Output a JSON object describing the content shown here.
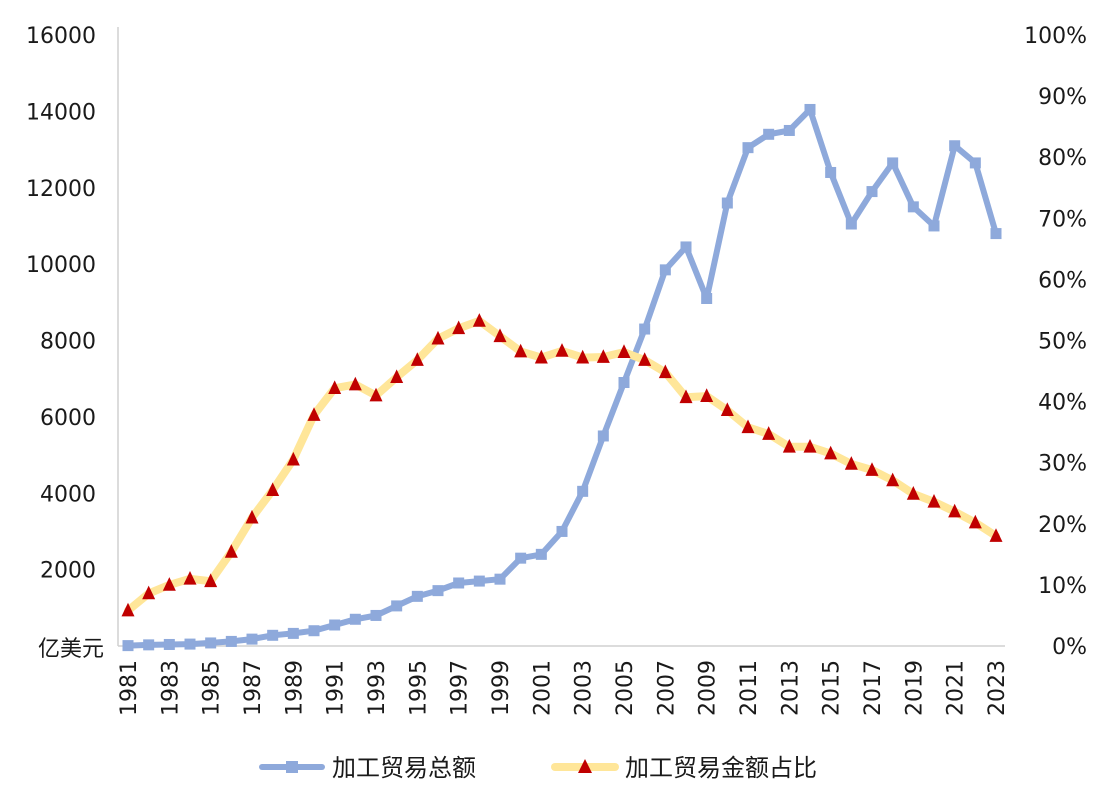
{
  "chart_data": {
    "type": "line",
    "y_unit_label": "亿美元",
    "x": [
      "1981",
      "1982",
      "1983",
      "1984",
      "1985",
      "1986",
      "1987",
      "1988",
      "1989",
      "1990",
      "1991",
      "1992",
      "1993",
      "1994",
      "1995",
      "1996",
      "1997",
      "1998",
      "1999",
      "2000",
      "2001",
      "2002",
      "2003",
      "2004",
      "2005",
      "2006",
      "2007",
      "2008",
      "2009",
      "2010",
      "2011",
      "2012",
      "2013",
      "2014",
      "2015",
      "2016",
      "2017",
      "2018",
      "2019",
      "2020",
      "2021",
      "2022",
      "2023"
    ],
    "x_tick_labels": [
      "1981",
      "1983",
      "1985",
      "1987",
      "1989",
      "1991",
      "1993",
      "1995",
      "1997",
      "1999",
      "2001",
      "2003",
      "2005",
      "2007",
      "2009",
      "2011",
      "2013",
      "2015",
      "2017",
      "2019",
      "2021",
      "2023"
    ],
    "y_left": {
      "range": [
        0,
        16000
      ],
      "tick_labels": [
        "2000",
        "4000",
        "6000",
        "8000",
        "10000",
        "12000",
        "14000",
        "16000"
      ],
      "tick_values": [
        2000,
        4000,
        6000,
        8000,
        10000,
        12000,
        14000,
        16000
      ]
    },
    "y_right": {
      "range": [
        0,
        100
      ],
      "tick_labels": [
        "0%",
        "10%",
        "20%",
        "30%",
        "40%",
        "50%",
        "60%",
        "70%",
        "80%",
        "90%",
        "100%"
      ],
      "tick_values": [
        0,
        10,
        20,
        30,
        40,
        50,
        60,
        70,
        80,
        90,
        100
      ]
    },
    "series": [
      {
        "name": "加工贸易总额",
        "axis": "left",
        "color": "#8ea9db",
        "marker": "square",
        "values": [
          10,
          30,
          40,
          50,
          80,
          120,
          180,
          280,
          330,
          400,
          550,
          700,
          800,
          1050,
          1300,
          1450,
          1650,
          1700,
          1750,
          2300,
          2400,
          3000,
          4050,
          5500,
          6900,
          8300,
          9850,
          10450,
          9100,
          11600,
          13050,
          13400,
          13500,
          14050,
          12400,
          11050,
          11900,
          12650,
          11500,
          11000,
          13100,
          12650,
          10800
        ]
      },
      {
        "name": "加工贸易金额占比",
        "axis": "right",
        "color": "#ffe699",
        "marker": "triangle",
        "marker_color": "#c00000",
        "values": [
          5.8,
          8.6,
          10.0,
          11.0,
          10.6,
          15.4,
          21.0,
          25.5,
          30.5,
          37.8,
          42.2,
          42.8,
          41.0,
          44.0,
          46.8,
          50.3,
          52.0,
          53.2,
          50.7,
          48.2,
          47.2,
          48.3,
          47.2,
          47.3,
          48.1,
          46.8,
          44.8,
          40.7,
          40.9,
          38.6,
          35.8,
          34.7,
          32.6,
          32.6,
          31.5,
          29.8,
          28.8,
          27.1,
          24.9,
          23.6,
          22.0,
          20.2,
          18.0
        ]
      }
    ],
    "legend_position": "bottom",
    "grid": false
  }
}
